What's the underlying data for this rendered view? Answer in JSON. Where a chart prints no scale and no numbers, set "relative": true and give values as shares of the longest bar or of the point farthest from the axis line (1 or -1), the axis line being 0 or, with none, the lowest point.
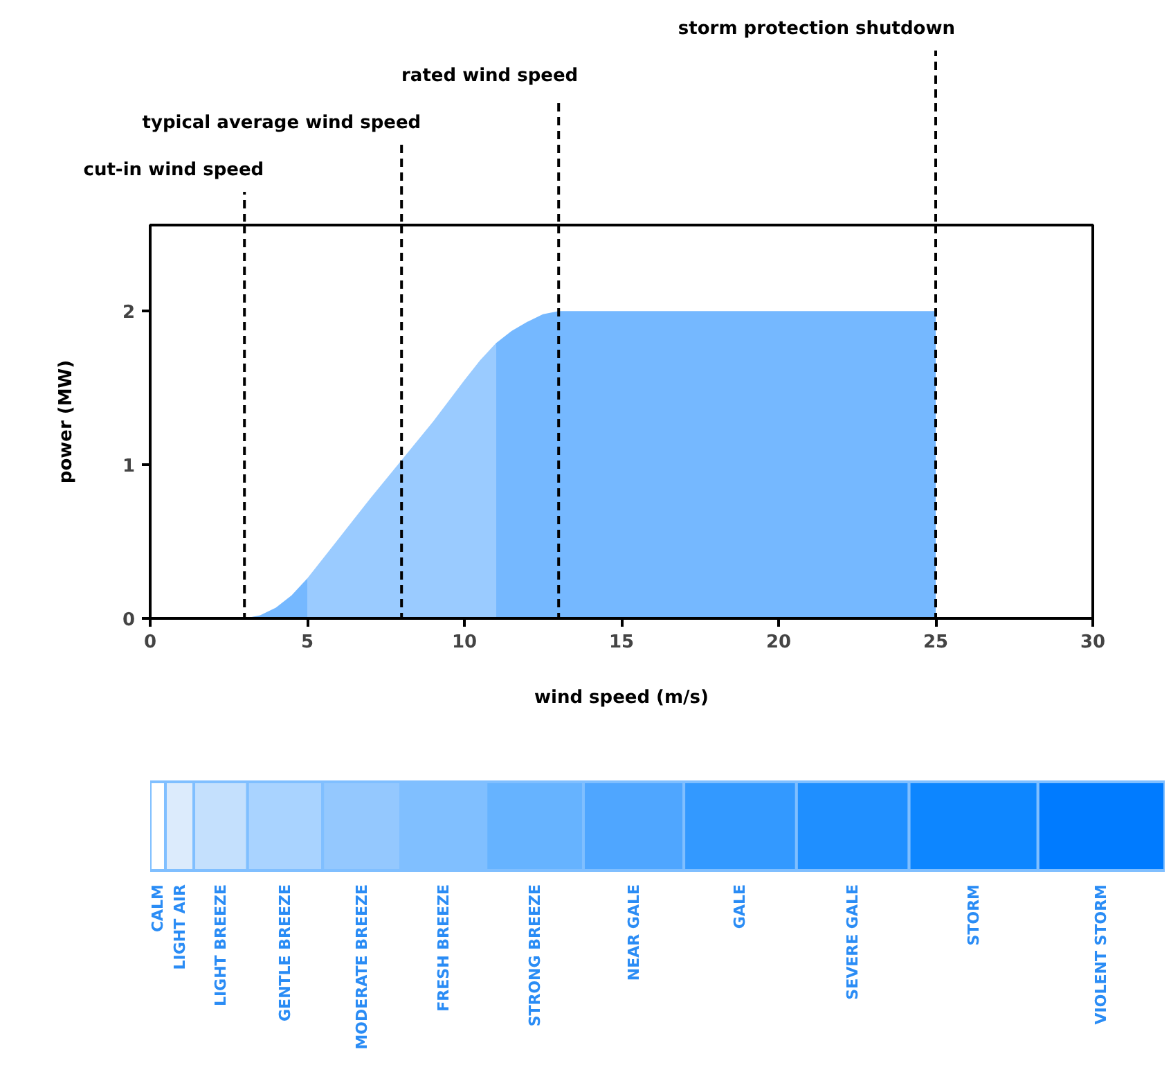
{
  "chart_data": [
    {
      "type": "area",
      "xlabel": "wind speed (m/s)",
      "ylabel": "power (MW)",
      "xlim": [
        0,
        30
      ],
      "ylim": [
        0,
        2.56
      ],
      "xticks": [
        0,
        5,
        10,
        15,
        20,
        25,
        30
      ],
      "yticks": [
        0,
        1,
        2
      ],
      "grid": false,
      "series": [
        {
          "color": "#75b8ff",
          "x": [
            3,
            3.5,
            4,
            4.5,
            5
          ],
          "values": [
            0,
            0.02,
            0.07,
            0.15,
            0.26
          ]
        },
        {
          "color": "#9acbff",
          "x": [
            5,
            6,
            7,
            8,
            9,
            10,
            10.5,
            11
          ],
          "values": [
            0.26,
            0.52,
            0.78,
            1.03,
            1.28,
            1.55,
            1.68,
            1.79
          ]
        },
        {
          "color": "#75b8ff",
          "x": [
            11,
            11.5,
            12,
            12.5,
            13,
            25
          ],
          "values": [
            1.79,
            1.87,
            1.93,
            1.98,
            2,
            2
          ]
        }
      ],
      "ref_lines": [
        {
          "axis": "x",
          "value": 3,
          "label": "cut-in wind speed",
          "color": "#000000",
          "line_style": "dashed"
        },
        {
          "axis": "x",
          "value": 8,
          "label": "typical average wind speed",
          "color": "#000000",
          "line_style": "dashed"
        },
        {
          "axis": "x",
          "value": 13,
          "label": "rated wind speed",
          "color": "#000000",
          "line_style": "dashed"
        },
        {
          "axis": "x",
          "value": 25,
          "label": "storm protection shutdown",
          "color": "#000000",
          "line_style": "dashed"
        }
      ]
    },
    {
      "type": "bar",
      "orientation": "horizontal",
      "stacked": true,
      "categories": [
        null
      ],
      "relative": true,
      "series": [
        {
          "name": "CALM",
          "color": "#ffffff",
          "values": [
            0.015
          ]
        },
        {
          "name": "LIGHT AIR",
          "color": "#dcebfc",
          "values": [
            0.028
          ]
        },
        {
          "name": "LIGHT BREEZE",
          "color": "#c4e0fd",
          "values": [
            0.053
          ]
        },
        {
          "name": "GENTLE BREEZE",
          "color": "#a9d3ff",
          "values": [
            0.074
          ]
        },
        {
          "name": "MODERATE BREEZE",
          "color": "#94c8fe",
          "values": [
            0.077
          ]
        },
        {
          "name": "FRESH BREEZE",
          "color": "#80bfff",
          "values": [
            0.084
          ]
        },
        {
          "name": "STRONG BREEZE",
          "color": "#66b3ff",
          "values": [
            0.096
          ]
        },
        {
          "name": "NEAR GALE",
          "color": "#4fa6ff",
          "values": [
            0.099
          ]
        },
        {
          "name": "GALE",
          "color": "#3399ff",
          "values": [
            0.111
          ]
        },
        {
          "name": "SEVERE GALE",
          "color": "#1f8fff",
          "values": [
            0.111
          ]
        },
        {
          "name": "STORM",
          "color": "#0d86ff",
          "values": [
            0.127
          ]
        },
        {
          "name": "VIOLENT STORM",
          "color": "#007bff",
          "values": [
            0.125
          ]
        }
      ]
    }
  ]
}
